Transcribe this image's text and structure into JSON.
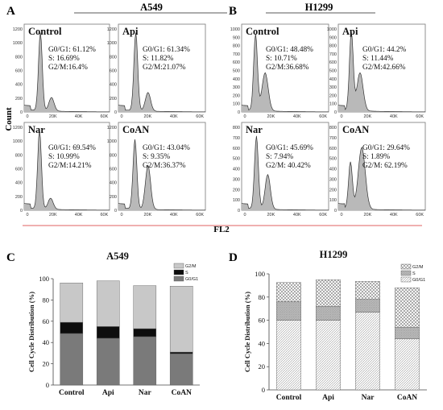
{
  "figure": {
    "panel_letters": {
      "a": "A",
      "b": "B",
      "c": "C",
      "d": "D"
    },
    "group_titles": {
      "a549": "A549",
      "h1299": "H1299"
    },
    "shared_y_label": "Count",
    "shared_x_label": "FL2",
    "hist_x_ticks": [
      "0",
      "20K",
      "40K",
      "60K"
    ],
    "hist_y_ticks_A": [
      "0",
      "200",
      "400",
      "600",
      "800",
      "1000",
      "1200"
    ],
    "hist_y_ticks_B": [
      "0",
      "100",
      "200",
      "300",
      "400",
      "500",
      "600",
      "700",
      "800",
      "900",
      "1000"
    ],
    "hist_y_ticks_B2": [
      "0",
      "100",
      "200",
      "300",
      "400",
      "500",
      "600",
      "700",
      "800"
    ],
    "colors": {
      "fill": "#b9b9b9",
      "outline": "#333333",
      "g0g1_dark": "#7a7a7a",
      "s_black": "#0d0d0d",
      "g2m_light": "#c8c8c8"
    }
  },
  "histograms": [
    {
      "id": "A-control",
      "name": "Control",
      "l1": "G0/G1: 61.12%",
      "l2": "S: 16.69%",
      "l3": "G2/M:16.4%"
    },
    {
      "id": "A-api",
      "name": "Api",
      "l1": "G0/G1: 61.34%",
      "l2": "S: 11.82%",
      "l3": "G2/M:21.07%"
    },
    {
      "id": "A-nar",
      "name": "Nar",
      "l1": "G0/G1: 69.54%",
      "l2": "S: 10.99%",
      "l3": "G2/M:14.21%"
    },
    {
      "id": "A-coan",
      "name": "CoAN",
      "l1": "G0/G1: 43.04%",
      "l2": "S: 9.35%",
      "l3": "G2/M:36.37%"
    },
    {
      "id": "B-control",
      "name": "Control",
      "l1": "G0/G1: 48.48%",
      "l2": "S: 10.71%",
      "l3": "G2/M:36.68%"
    },
    {
      "id": "B-api",
      "name": "Api",
      "l1": "G0/G1: 44.2%",
      "l2": "S: 11.44%",
      "l3": "G2/M:42.66%"
    },
    {
      "id": "B-nar",
      "name": "Nar",
      "l1": "G0/G1: 45.69%",
      "l2": "S: 7.94%",
      "l3": "G2/M: 40.42%"
    },
    {
      "id": "B-coan",
      "name": "CoAN",
      "l1": "G0/G1: 29.64%",
      "l2": "S: 1.89%",
      "l3": "G2/M: 62.19%"
    }
  ],
  "chart_data": [
    {
      "type": "bar",
      "title": "A549",
      "xlabel": "",
      "ylabel": "Cell Cycle Distribution (%)",
      "ylim": [
        0,
        100
      ],
      "yticks": [
        "0",
        "20",
        "40",
        "60",
        "80",
        "100"
      ],
      "categories": [
        "Control",
        "Api",
        "Nar",
        "CoAN"
      ],
      "stacked": true,
      "legend_position": "top-right",
      "series": [
        {
          "name": "G0/G1",
          "values": [
            48.5,
            44.0,
            45.5,
            29.5
          ]
        },
        {
          "name": "S",
          "values": [
            10.5,
            11.0,
            7.5,
            1.5
          ]
        },
        {
          "name": "G2/M",
          "values": [
            37.0,
            43.0,
            40.5,
            62.0
          ]
        }
      ],
      "legend_order": [
        "G2/M",
        "S",
        "G0/G1"
      ]
    },
    {
      "type": "bar",
      "title": "H1299",
      "xlabel": "",
      "ylabel": "Cell Cycle Distribution (%)",
      "ylim": [
        0,
        100
      ],
      "yticks": [
        "0",
        "20",
        "40",
        "60",
        "80",
        "100"
      ],
      "categories": [
        "Control",
        "Api",
        "Nar",
        "CoAN"
      ],
      "stacked": true,
      "legend_position": "top-right",
      "series": [
        {
          "name": "G0/G1",
          "values": [
            60.0,
            60.0,
            67.0,
            44.0
          ]
        },
        {
          "name": "S",
          "values": [
            16.0,
            12.0,
            11.0,
            10.0
          ]
        },
        {
          "name": "G2/M",
          "values": [
            16.5,
            23.0,
            15.5,
            34.0
          ]
        }
      ],
      "legend_order": [
        "G2/M",
        "S",
        "G0/G1"
      ]
    }
  ]
}
